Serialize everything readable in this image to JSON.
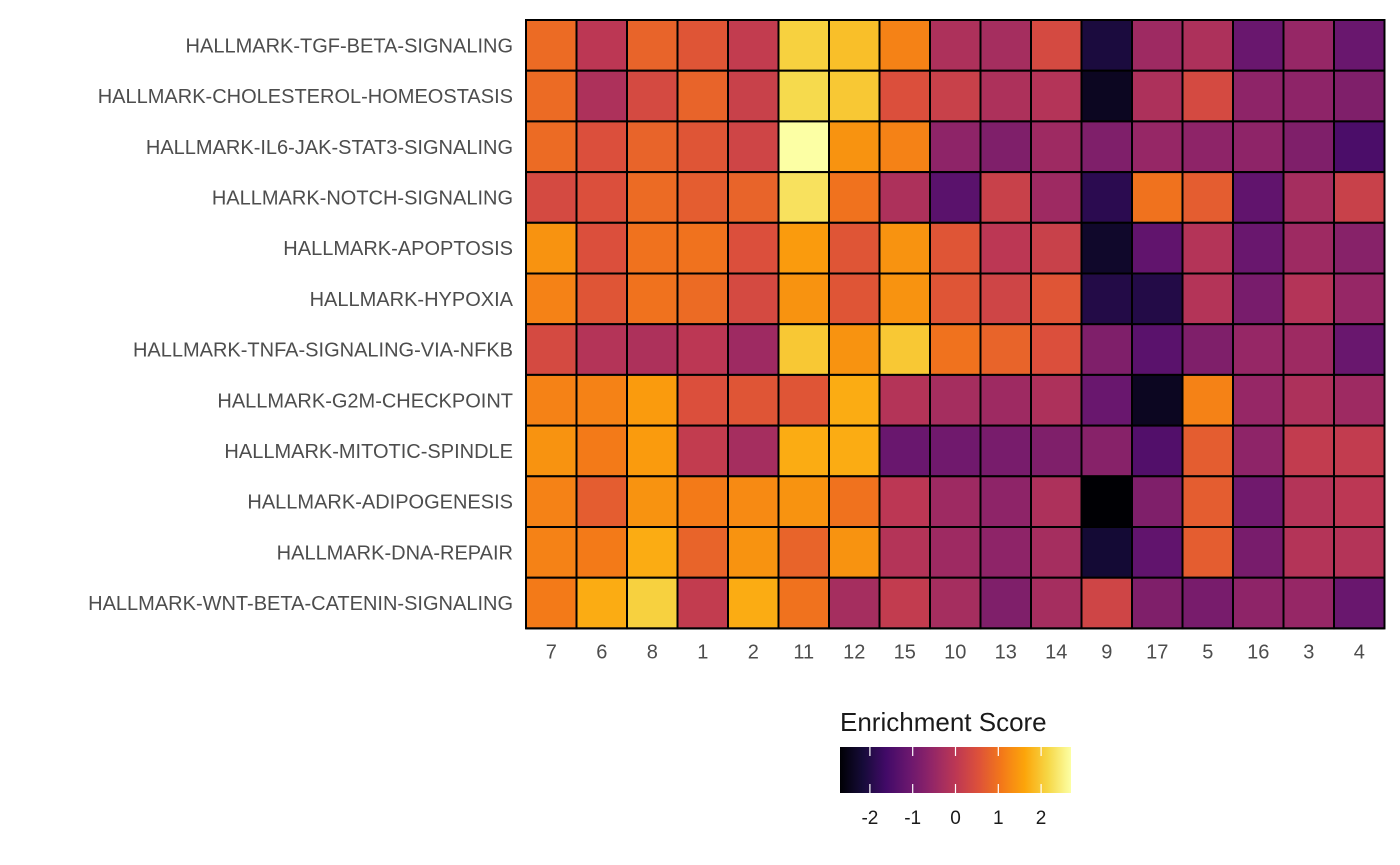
{
  "chart_data": {
    "type": "heatmap",
    "rows": [
      "HALLMARK-TGF-BETA-SIGNALING",
      "HALLMARK-CHOLESTEROL-HOMEOSTASIS",
      "HALLMARK-IL6-JAK-STAT3-SIGNALING",
      "HALLMARK-NOTCH-SIGNALING",
      "HALLMARK-APOPTOSIS",
      "HALLMARK-HYPOXIA",
      "HALLMARK-TNFA-SIGNALING-VIA-NFKB",
      "HALLMARK-G2M-CHECKPOINT",
      "HALLMARK-MITOTIC-SPINDLE",
      "HALLMARK-ADIPOGENESIS",
      "HALLMARK-DNA-REPAIR",
      "HALLMARK-WNT-BETA-CATENIN-SIGNALING"
    ],
    "columns": [
      "7",
      "6",
      "8",
      "1",
      "2",
      "11",
      "12",
      "15",
      "10",
      "13",
      "14",
      "9",
      "17",
      "5",
      "16",
      "3",
      "4"
    ],
    "values": [
      [
        0.9,
        0.0,
        0.8,
        0.6,
        0.1,
        2.1,
        1.9,
        1.2,
        -0.2,
        -0.3,
        0.4,
        -2.1,
        -0.4,
        -0.2,
        -1.1,
        -0.5,
        -1.1
      ],
      [
        0.9,
        -0.2,
        0.4,
        0.8,
        0.2,
        2.2,
        2.0,
        0.5,
        0.2,
        -0.2,
        -0.1,
        -2.4,
        -0.2,
        0.4,
        -0.6,
        -0.6,
        -0.8
      ],
      [
        0.9,
        0.5,
        0.8,
        0.6,
        0.3,
        2.7,
        1.4,
        1.2,
        -0.6,
        -0.8,
        -0.4,
        -0.8,
        -0.5,
        -0.6,
        -0.6,
        -0.8,
        -1.5
      ],
      [
        0.4,
        0.5,
        0.9,
        0.7,
        0.8,
        2.3,
        1.0,
        -0.2,
        -1.3,
        0.2,
        -0.4,
        -1.9,
        1.0,
        0.7,
        -1.2,
        -0.3,
        0.2
      ],
      [
        1.4,
        0.5,
        1.0,
        1.0,
        0.5,
        1.5,
        0.6,
        1.4,
        0.6,
        0.0,
        0.2,
        -2.3,
        -1.2,
        -0.1,
        -1.1,
        -0.4,
        -0.7
      ],
      [
        1.2,
        0.6,
        1.0,
        0.9,
        0.4,
        1.4,
        0.6,
        1.4,
        0.6,
        0.3,
        0.6,
        -2.0,
        -2.0,
        -0.1,
        -0.9,
        -0.1,
        -0.5
      ],
      [
        0.4,
        -0.1,
        -0.2,
        0.0,
        -0.4,
        2.0,
        1.4,
        2.0,
        1.0,
        0.8,
        0.5,
        -0.8,
        -1.3,
        -0.8,
        -0.5,
        -0.4,
        -1.1
      ],
      [
        1.2,
        1.2,
        1.5,
        0.5,
        0.6,
        0.6,
        1.7,
        -0.1,
        -0.3,
        -0.4,
        -0.2,
        -1.1,
        -2.4,
        1.2,
        -0.5,
        -0.2,
        -0.4
      ],
      [
        1.4,
        1.1,
        1.5,
        0.1,
        -0.3,
        1.7,
        1.7,
        -1.1,
        -1.0,
        -0.9,
        -0.8,
        -0.7,
        -1.4,
        0.7,
        -0.6,
        0.1,
        0.1
      ],
      [
        1.2,
        0.7,
        1.4,
        1.1,
        1.3,
        1.4,
        1.0,
        0.0,
        -0.4,
        -0.6,
        -0.2,
        -2.7,
        -0.8,
        0.7,
        -1.0,
        -0.1,
        0.0
      ],
      [
        1.2,
        1.1,
        1.7,
        0.8,
        1.4,
        0.8,
        1.4,
        -0.1,
        -0.4,
        -0.6,
        -0.3,
        -2.2,
        -1.2,
        0.7,
        -0.9,
        -0.1,
        -0.1
      ],
      [
        1.1,
        1.7,
        2.1,
        0.1,
        1.7,
        1.0,
        -0.3,
        0.1,
        -0.3,
        -0.8,
        -0.3,
        0.3,
        -0.8,
        -0.9,
        -0.6,
        -0.5,
        -1.1
      ]
    ],
    "colormap": "inferno",
    "color_range": [
      -2.7,
      2.7
    ],
    "legend": {
      "title": "Enrichment Score",
      "ticks": [
        -2,
        -1,
        0,
        1,
        2
      ],
      "tick_labels": [
        "-2",
        "-1",
        "0",
        "1",
        "2"
      ],
      "placement": "bottom"
    },
    "colors": {
      "cell_border": "#000000",
      "text": "#4d4d4d",
      "title": "#1a1a1a"
    }
  }
}
